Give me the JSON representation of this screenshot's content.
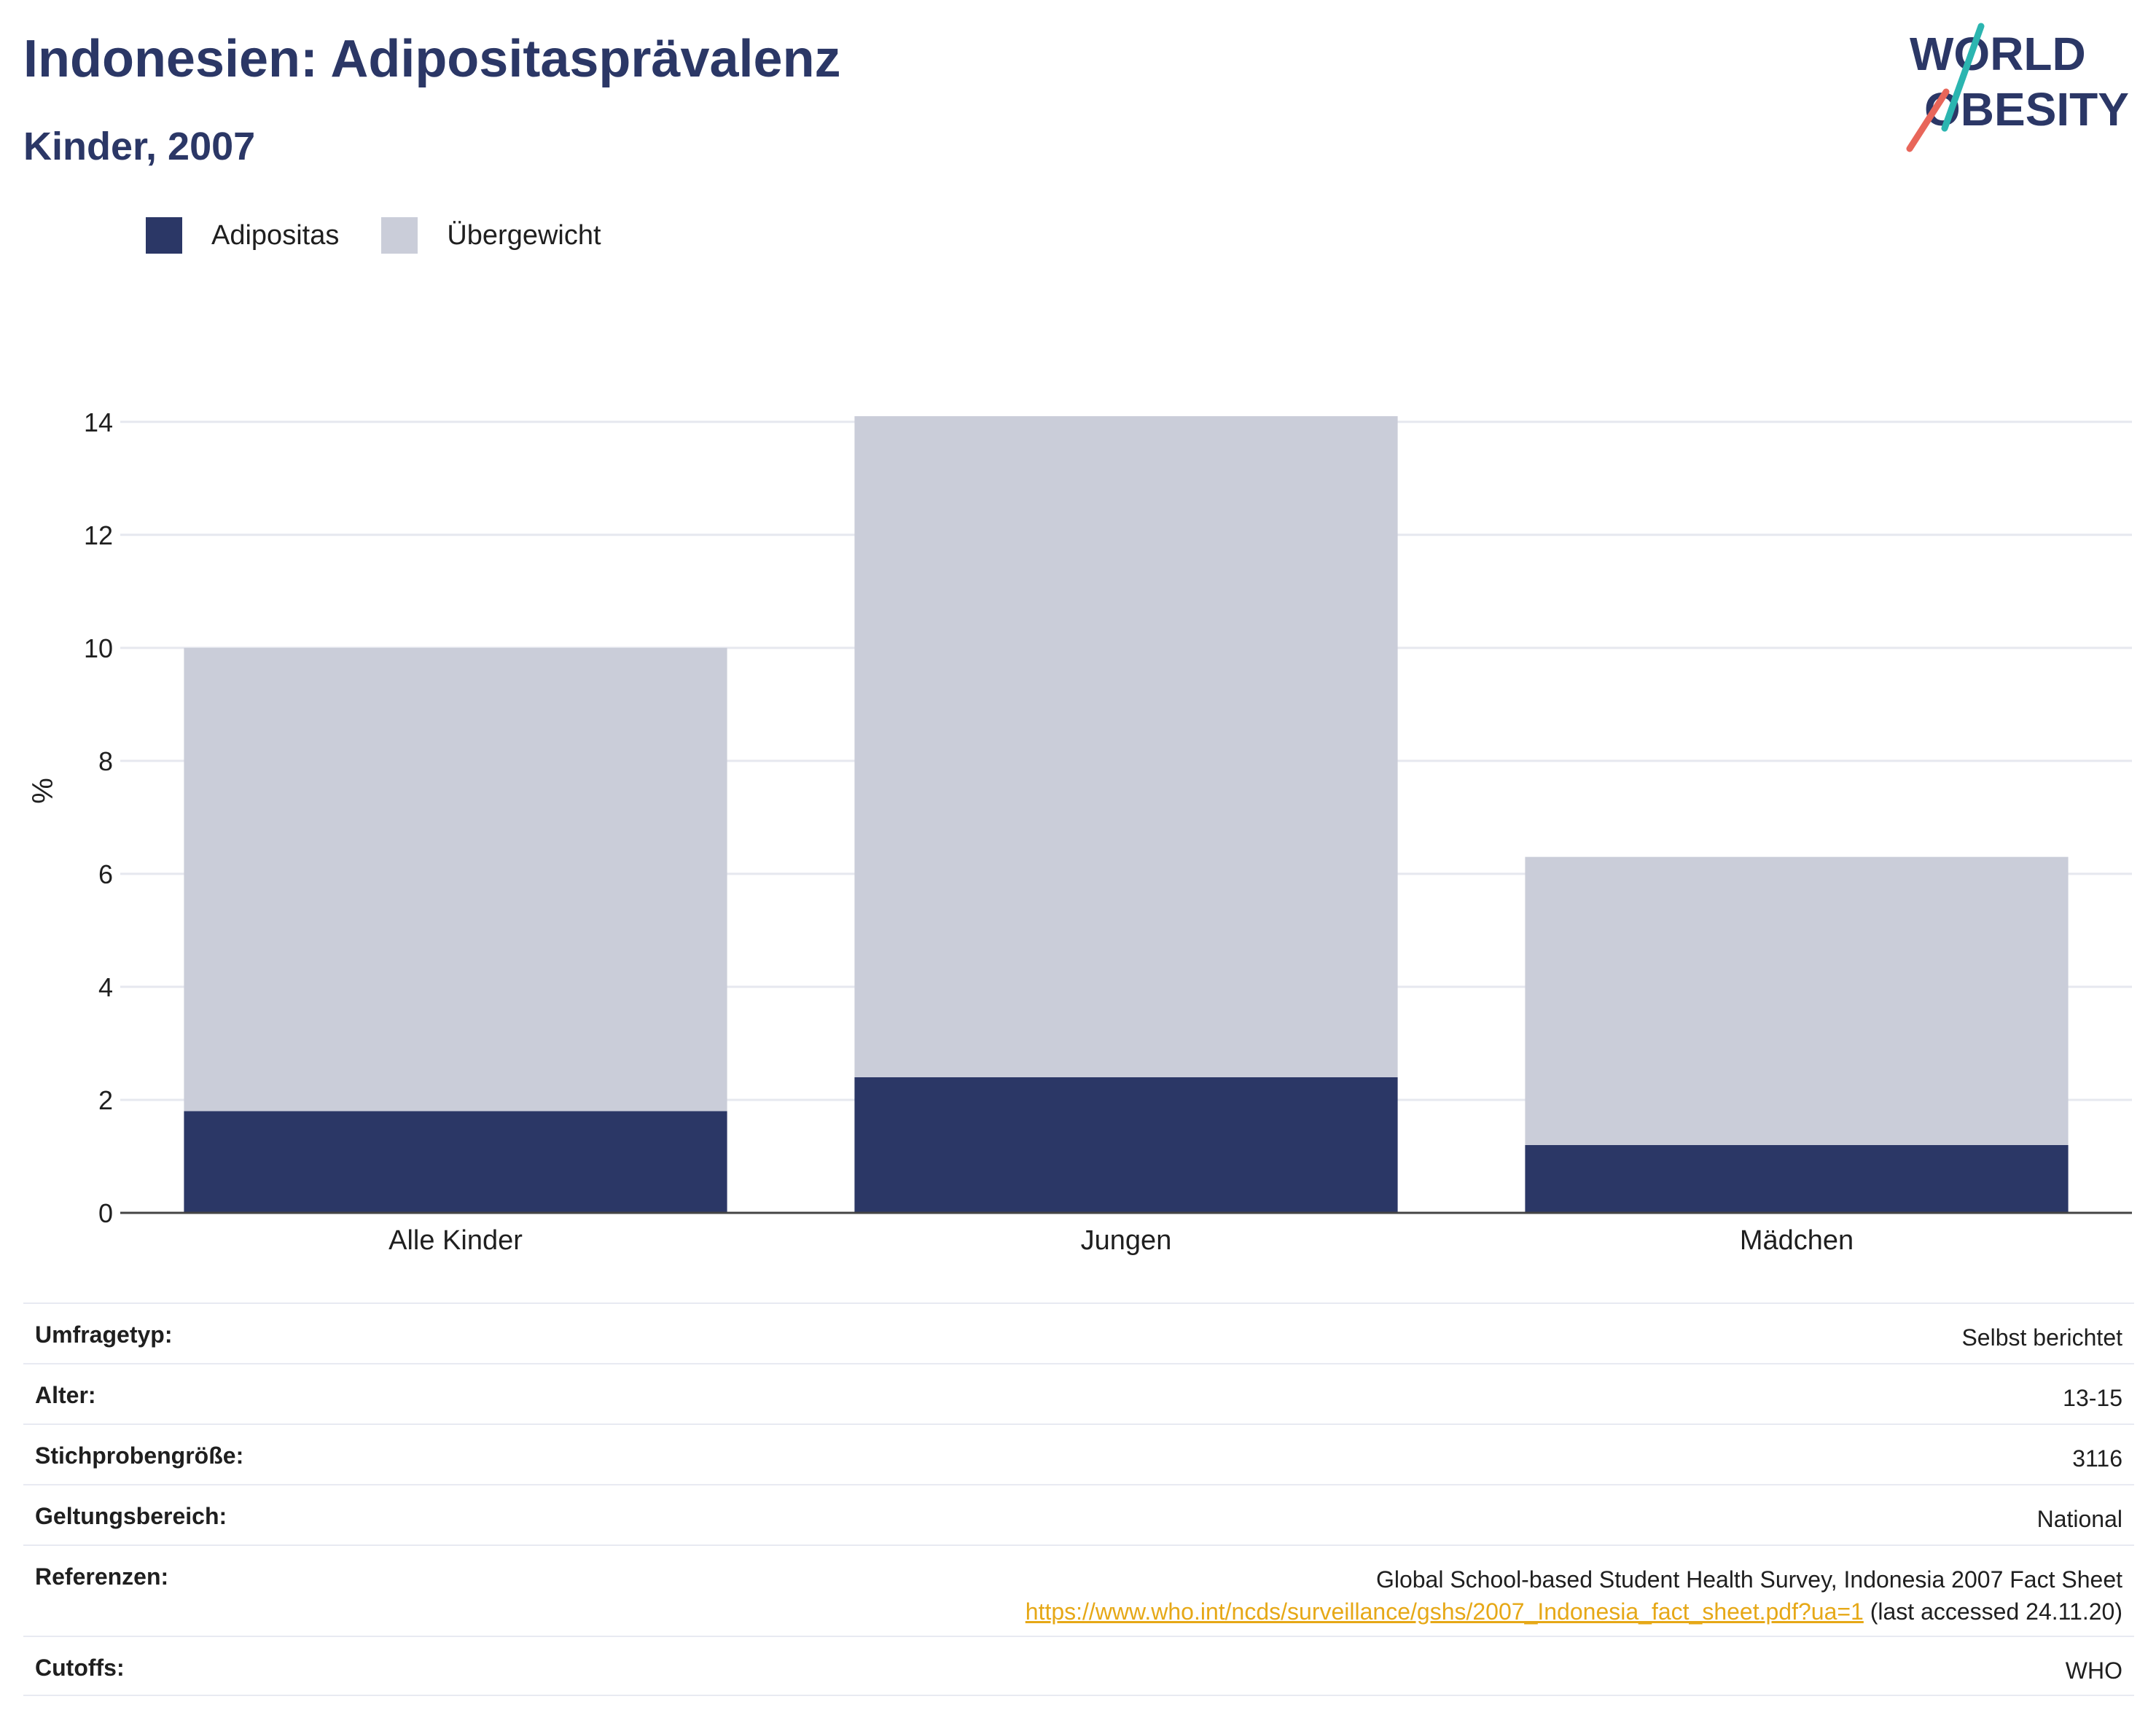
{
  "header": {
    "title": "Indonesien: Adipositasprävalenz",
    "subtitle": "Kinder, 2007"
  },
  "logo": {
    "line1": "WORLD",
    "line2": "OBESITY",
    "colors": {
      "text": "#2b3766",
      "slash_top": "#2bb5b0",
      "slash_bottom": "#e8665a"
    }
  },
  "legend": [
    {
      "label": "Adipositas",
      "color": "#2b3766"
    },
    {
      "label": "Übergewicht",
      "color": "#cacdd9"
    }
  ],
  "chart_data": {
    "type": "bar",
    "stacked": true,
    "categories": [
      "Alle Kinder",
      "Jungen",
      "Mädchen"
    ],
    "series": [
      {
        "name": "Adipositas",
        "values": [
          1.8,
          2.4,
          1.2
        ],
        "color": "#2b3766"
      },
      {
        "name": "Übergewicht",
        "values": [
          8.2,
          11.7,
          5.1
        ],
        "color": "#cacdd9"
      }
    ],
    "totals": [
      10.0,
      14.1,
      6.3
    ],
    "ylabel": "%",
    "xlabel": "",
    "ylim": [
      0,
      14.5
    ],
    "yticks": [
      0,
      2,
      4,
      6,
      8,
      10,
      12,
      14
    ],
    "grid": true
  },
  "info": {
    "rows": [
      {
        "key": "Umfragetyp:",
        "value": "Selbst berichtet"
      },
      {
        "key": "Alter:",
        "value": "13-15"
      },
      {
        "key": "Stichprobengröße:",
        "value": "3116"
      },
      {
        "key": "Geltungsbereich:",
        "value": "National"
      }
    ],
    "reference": {
      "key": "Referenzen:",
      "line1": "Global School-based Student Health Survey, Indonesia 2007 Fact Sheet",
      "link": "https://www.who.int/ncds/surveillance/gshs/2007_Indonesia_fact_sheet.pdf?ua=1",
      "suffix": " (last accessed 24.11.20)"
    },
    "cutoffs": {
      "key": "Cutoffs:",
      "value": "WHO"
    }
  }
}
